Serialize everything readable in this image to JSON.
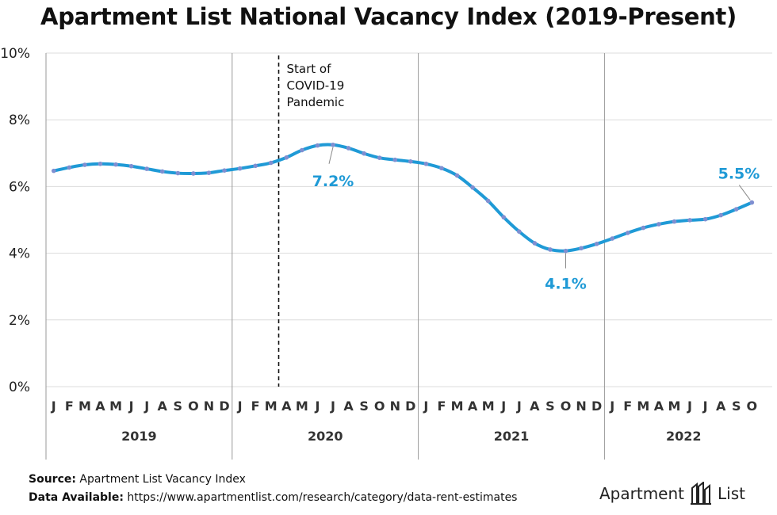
{
  "title": "Apartment List National Vacancy Index (2019-Present)",
  "footer": {
    "source_label": "Source:",
    "source_text": "Apartment List Vacancy Index",
    "data_label": "Data Available:",
    "data_text": "https://www.apartmentlist.com/research/category/data-rent-estimates"
  },
  "logo": {
    "text_left": "Apartment",
    "text_right": "List",
    "icon": "apartment-list-logo-icon"
  },
  "colors": {
    "line": "#1f9ad6",
    "points": "#7f8fd1",
    "grid": "#dcdcdc",
    "year_divider": "#999999",
    "label": "#1f9ad6"
  },
  "chart_data": {
    "type": "line",
    "title": "Apartment List National Vacancy Index (2019-Present)",
    "xlabel": "",
    "ylabel": "",
    "ylim": [
      0,
      10
    ],
    "yticks": [
      "0%",
      "2%",
      "4%",
      "6%",
      "8%",
      "10%"
    ],
    "ytick_values": [
      0,
      2,
      4,
      6,
      8,
      10
    ],
    "month_labels": [
      "J",
      "F",
      "M",
      "A",
      "M",
      "J",
      "J",
      "A",
      "S",
      "O",
      "N",
      "D"
    ],
    "years": [
      "2019",
      "2020",
      "2021",
      "2022"
    ],
    "grid": true,
    "series": [
      {
        "values": [
          6.47,
          6.57,
          6.65,
          6.68,
          6.66,
          6.61,
          6.53,
          6.45,
          6.4,
          6.39,
          6.41,
          6.48,
          6.54,
          6.62,
          6.71,
          6.87,
          7.09,
          7.23,
          7.25,
          7.15,
          6.99,
          6.86,
          6.8,
          6.75,
          6.68,
          6.55,
          6.33,
          5.97,
          5.57,
          5.08,
          4.65,
          4.3,
          4.11,
          4.07,
          4.15,
          4.28,
          4.44,
          4.61,
          4.76,
          4.87,
          4.95,
          4.99,
          5.02,
          5.14,
          5.32,
          5.52
        ]
      }
    ],
    "annotations": [
      {
        "text": "7.2%",
        "x_index": 18
      },
      {
        "text": "4.1%",
        "x_index": 33
      },
      {
        "text": "5.5%",
        "x_index": 45
      }
    ],
    "event": {
      "text_lines": [
        "Start of",
        "COVID-19",
        "Pandemic"
      ],
      "x_index": 14.5
    }
  }
}
